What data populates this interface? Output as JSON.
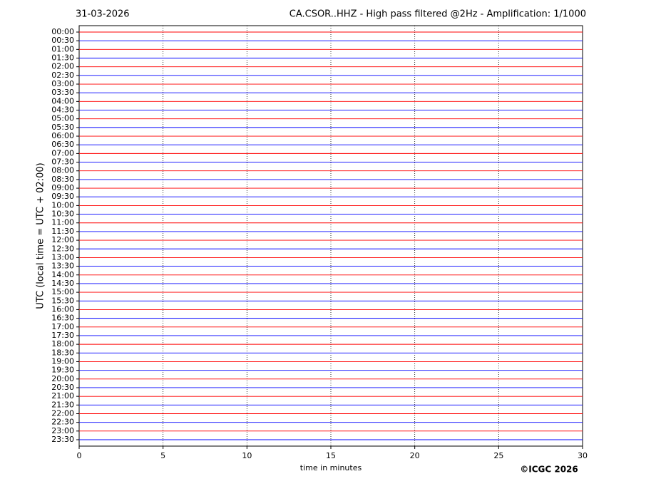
{
  "chart_data": {
    "type": "helicorder",
    "date": "31-03-2026",
    "title": "CA.CSOR..HHZ - High pass filtered @2Hz - Amplification: 1/1000",
    "y_label": "UTC (local time = UTC + 02:00)",
    "x_label": "time in minutes",
    "copyright": "©ICGC 2026",
    "categories": [
      "00:00",
      "00:30",
      "01:00",
      "01:30",
      "02:00",
      "02:30",
      "03:00",
      "03:30",
      "04:00",
      "04:30",
      "05:00",
      "05:30",
      "06:00",
      "06:30",
      "07:00",
      "07:30",
      "08:00",
      "08:30",
      "09:00",
      "09:30",
      "10:00",
      "10:30",
      "11:00",
      "11:30",
      "12:00",
      "12:30",
      "13:00",
      "13:30",
      "14:00",
      "14:30",
      "15:00",
      "15:30",
      "16:00",
      "16:30",
      "17:00",
      "17:30",
      "18:00",
      "18:30",
      "19:00",
      "19:30",
      "20:00",
      "20:30",
      "21:00",
      "21:30",
      "22:00",
      "22:30",
      "23:00",
      "23:30"
    ],
    "colors": [
      "#ff0000",
      "#0000ff"
    ],
    "xlim": [
      0,
      30
    ],
    "xticks": [
      0,
      5,
      10,
      15,
      20,
      25,
      30
    ],
    "grid": true
  }
}
